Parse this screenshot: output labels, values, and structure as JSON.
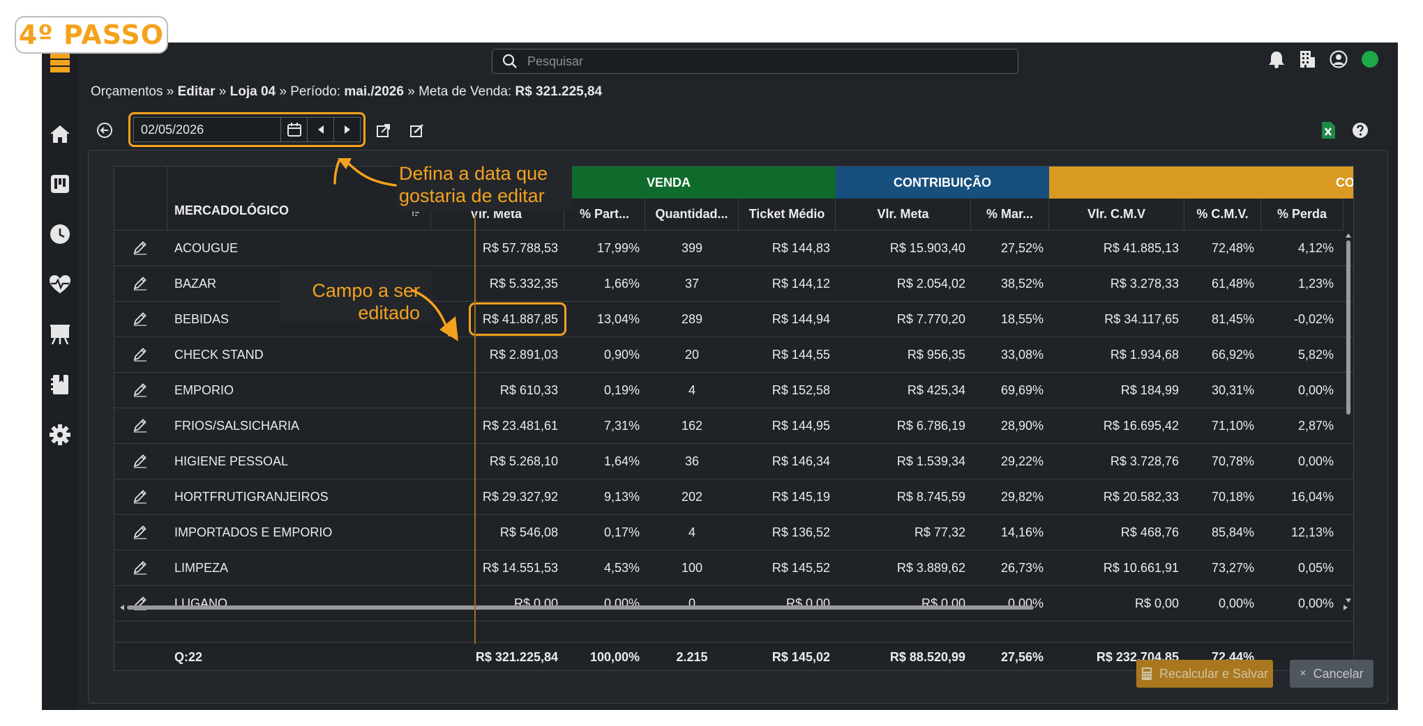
{
  "step_badge": "4º PASSO",
  "search": {
    "placeholder": "Pesquisar"
  },
  "breadcrumb": {
    "p1": "Orçamentos",
    "sep": "»",
    "p2": "Editar",
    "p3": "Loja 04",
    "p4_label": "Período:",
    "p4_value": "mai./2026",
    "p5_label": "Meta de Venda:",
    "p5_value": "R$ 321.225,84"
  },
  "date": {
    "value": "02/05/2026"
  },
  "annotations": {
    "date_line1": "Defina a data que",
    "date_line2": "gostaria de editar",
    "field_line1": "Campo a ser",
    "field_line2": "editado"
  },
  "groups": {
    "venda": "VENDA",
    "contribuicao": "CONTRIBUIÇÃO",
    "cmv": "CO"
  },
  "group_colors": {
    "venda": "#0f6b2c",
    "contribuicao": "#174f7d",
    "cmv": "#d99a23"
  },
  "columns": {
    "mercadologico": "MERCADOLÓGICO",
    "vlr_meta": "Vlr. Meta",
    "pct_part": "% Part...",
    "quantidade": "Quantidad...",
    "ticket": "Ticket Médio",
    "contrib_meta": "Vlr. Meta",
    "pct_mar": "% Mar...",
    "vlr_cmv": "Vlr. C.M.V",
    "pct_cmv": "% C.M.V.",
    "pct_perda": "% Perda"
  },
  "rows": [
    {
      "name": "ACOUGUE",
      "meta": "R$ 57.788,53",
      "part": "17,99%",
      "qtd": "399",
      "ticket": "R$ 144,83",
      "cmeta": "R$ 15.903,40",
      "mar": "27,52%",
      "cmv": "R$ 41.885,13",
      "pcmv": "72,48%",
      "perda": "4,12%"
    },
    {
      "name": "BAZAR",
      "meta": "R$ 5.332,35",
      "part": "1,66%",
      "qtd": "37",
      "ticket": "R$ 144,12",
      "cmeta": "R$ 2.054,02",
      "mar": "38,52%",
      "cmv": "R$ 3.278,33",
      "pcmv": "61,48%",
      "perda": "1,23%"
    },
    {
      "name": "BEBIDAS",
      "meta": "R$ 41.887,85",
      "part": "13,04%",
      "qtd": "289",
      "ticket": "R$ 144,94",
      "cmeta": "R$ 7.770,20",
      "mar": "18,55%",
      "cmv": "R$ 34.117,65",
      "pcmv": "81,45%",
      "perda": "-0,02%"
    },
    {
      "name": "CHECK STAND",
      "meta": "R$ 2.891,03",
      "part": "0,90%",
      "qtd": "20",
      "ticket": "R$ 144,55",
      "cmeta": "R$ 956,35",
      "mar": "33,08%",
      "cmv": "R$ 1.934,68",
      "pcmv": "66,92%",
      "perda": "5,82%"
    },
    {
      "name": "EMPORIO",
      "meta": "R$ 610,33",
      "part": "0,19%",
      "qtd": "4",
      "ticket": "R$ 152,58",
      "cmeta": "R$ 425,34",
      "mar": "69,69%",
      "cmv": "R$ 184,99",
      "pcmv": "30,31%",
      "perda": "0,00%"
    },
    {
      "name": "FRIOS/SALSICHARIA",
      "meta": "R$ 23.481,61",
      "part": "7,31%",
      "qtd": "162",
      "ticket": "R$ 144,95",
      "cmeta": "R$ 6.786,19",
      "mar": "28,90%",
      "cmv": "R$ 16.695,42",
      "pcmv": "71,10%",
      "perda": "2,87%"
    },
    {
      "name": "HIGIENE PESSOAL",
      "meta": "R$ 5.268,10",
      "part": "1,64%",
      "qtd": "36",
      "ticket": "R$ 146,34",
      "cmeta": "R$ 1.539,34",
      "mar": "29,22%",
      "cmv": "R$ 3.728,76",
      "pcmv": "70,78%",
      "perda": "0,00%"
    },
    {
      "name": "HORTFRUTIGRANJEIROS",
      "meta": "R$ 29.327,92",
      "part": "9,13%",
      "qtd": "202",
      "ticket": "R$ 145,19",
      "cmeta": "R$ 8.745,59",
      "mar": "29,82%",
      "cmv": "R$ 20.582,33",
      "pcmv": "70,18%",
      "perda": "16,04%"
    },
    {
      "name": "IMPORTADOS E EMPORIO",
      "meta": "R$ 546,08",
      "part": "0,17%",
      "qtd": "4",
      "ticket": "R$ 136,52",
      "cmeta": "R$ 77,32",
      "mar": "14,16%",
      "cmv": "R$ 468,76",
      "pcmv": "85,84%",
      "perda": "12,13%"
    },
    {
      "name": "LIMPEZA",
      "meta": "R$ 14.551,53",
      "part": "4,53%",
      "qtd": "100",
      "ticket": "R$ 145,52",
      "cmeta": "R$ 3.889,62",
      "mar": "26,73%",
      "cmv": "R$ 10.661,91",
      "pcmv": "73,27%",
      "perda": "0,05%"
    },
    {
      "name": "LUGANO",
      "meta": "R$ 0,00",
      "part": "0,00%",
      "qtd": "0",
      "ticket": "R$ 0,00",
      "cmeta": "R$ 0,00",
      "mar": "0,00%",
      "cmv": "R$ 0,00",
      "pcmv": "0,00%",
      "perda": "0,00%"
    }
  ],
  "totals": {
    "count": "Q:22",
    "meta": "R$ 321.225,84",
    "part": "100,00%",
    "qtd": "2.215",
    "ticket": "R$ 145,02",
    "cmeta": "R$ 88.520,99",
    "mar": "27,56%",
    "cmv": "R$ 232.704,85",
    "pcmv": "72,44%"
  },
  "buttons": {
    "save": "Recalcular e Salvar",
    "cancel": "Cancelar"
  },
  "icons": {
    "sidebar": [
      "home-icon",
      "kanban-icon",
      "clock-icon",
      "heart-pulse-icon",
      "presentation-icon",
      "book-icon",
      "gear-icon"
    ],
    "top": [
      "bell-icon",
      "building-icon",
      "user-circle-icon"
    ]
  },
  "accent_color": "#f4a21d"
}
